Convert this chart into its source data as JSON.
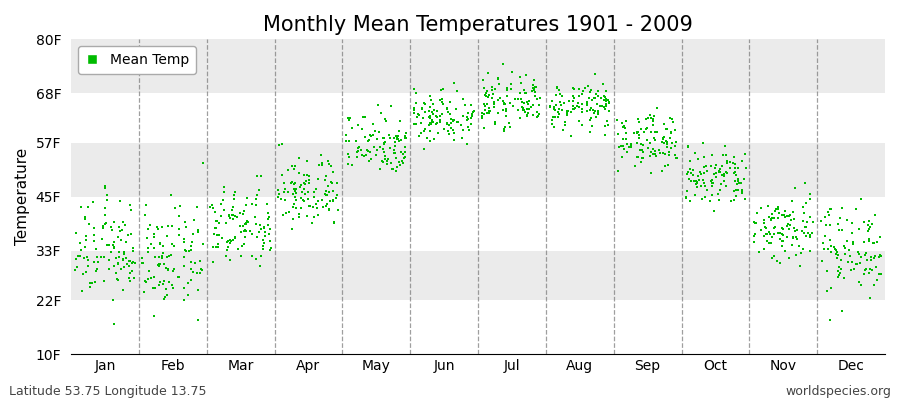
{
  "title": "Monthly Mean Temperatures 1901 - 2009",
  "ylabel": "Temperature",
  "footer_left": "Latitude 53.75 Longitude 13.75",
  "footer_right": "worldspecies.org",
  "legend_label": "Mean Temp",
  "yticks": [
    10,
    22,
    33,
    45,
    57,
    68,
    80
  ],
  "ytick_labels": [
    "10F",
    "22F",
    "33F",
    "45F",
    "57F",
    "68F",
    "80F"
  ],
  "months": [
    "Jan",
    "Feb",
    "Mar",
    "Apr",
    "May",
    "Jun",
    "Jul",
    "Aug",
    "Sep",
    "Oct",
    "Nov",
    "Dec"
  ],
  "mean_temps_f": [
    33.0,
    31.0,
    38.0,
    46.0,
    57.0,
    63.0,
    66.0,
    65.0,
    57.5,
    49.0,
    38.0,
    33.5
  ],
  "std_temps_f": [
    5.5,
    5.5,
    4.5,
    4.0,
    3.5,
    3.0,
    2.5,
    2.5,
    3.0,
    3.5,
    4.0,
    5.0
  ],
  "n_years": 109,
  "dot_color": "#00bb00",
  "dot_size": 4,
  "fig_bg_color": "#ffffff",
  "plot_bg_color": "#ffffff",
  "band_color_odd": "#ebebeb",
  "band_color_even": "#f5f5f5",
  "dashed_line_color": "#777777",
  "title_fontsize": 15,
  "ylabel_fontsize": 11,
  "tick_fontsize": 10,
  "footer_fontsize": 9,
  "legend_fontsize": 10
}
